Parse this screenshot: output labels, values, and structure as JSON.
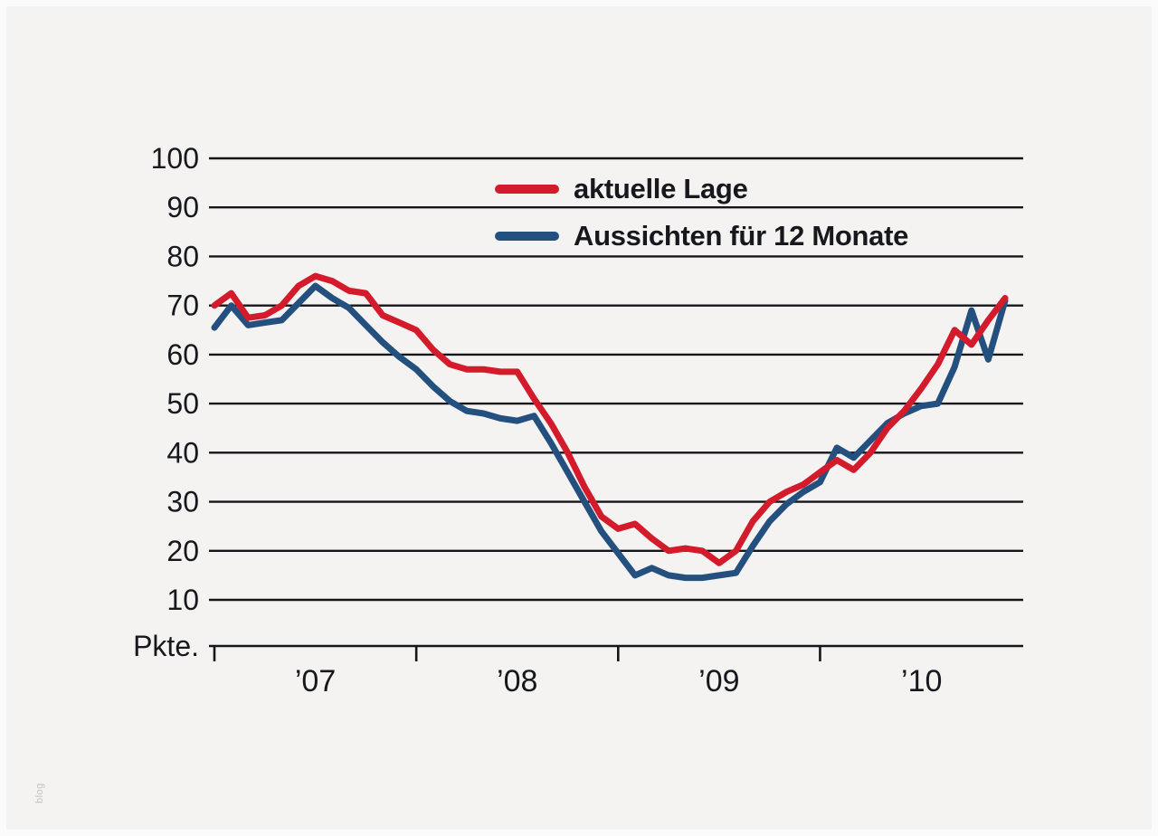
{
  "chart_data": {
    "type": "line",
    "title": "",
    "unit_label": "Pkte.",
    "x_year_labels": [
      "’07",
      "’08",
      "’09",
      "’10"
    ],
    "year_boundary_months": [
      0,
      12,
      24,
      36
    ],
    "n_points": 48,
    "y_ticks": [
      10,
      20,
      30,
      40,
      50,
      60,
      70,
      80,
      90,
      100
    ],
    "ylim": [
      10,
      100
    ],
    "grid": "horizontal-only",
    "legend_position": "top-center-inside",
    "series": [
      {
        "name": "aktuelle Lage",
        "color": "#d31b2c",
        "values": [
          70,
          72.5,
          67.5,
          68,
          70,
          74,
          76,
          75,
          73,
          72.5,
          68,
          66.5,
          65,
          61,
          58,
          57,
          57,
          56.5,
          56.5,
          51,
          46,
          40,
          33,
          27,
          24.5,
          25.5,
          22.5,
          20,
          20.5,
          20,
          17.5,
          20,
          26,
          30,
          32,
          33.5,
          36,
          38.5,
          36.5,
          40,
          45,
          48.5,
          53,
          58,
          65,
          62,
          67,
          71.5
        ]
      },
      {
        "name": "Aussichten für 12 Monate",
        "color": "#23507e",
        "values": [
          65.5,
          70,
          66,
          66.5,
          67,
          70.5,
          74,
          71.5,
          69.5,
          66,
          62.5,
          59.5,
          57,
          53.5,
          50.5,
          48.5,
          48,
          47,
          46.5,
          47.5,
          42,
          36,
          30,
          24,
          19.5,
          15,
          16.5,
          15,
          14.5,
          14.5,
          15,
          15.5,
          21,
          26,
          29.5,
          32,
          34,
          41,
          39,
          42.5,
          46,
          48,
          49.5,
          50,
          57.5,
          69,
          59,
          71
        ]
      }
    ]
  },
  "watermark": "blog",
  "colors": {
    "background": "#f4f3f1",
    "frame": "#fbfbfb",
    "grid": "#14161a",
    "text": "#16181d",
    "watermark": "#c2c2c2"
  }
}
